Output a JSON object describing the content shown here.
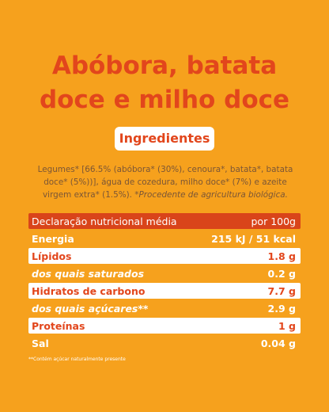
{
  "title": "Abóbora, batata doce e milho doce",
  "ingredients": {
    "heading": "Ingredientes",
    "text": "Legumes* [66.5% (abóbora* (30%), cenoura*, batata*, batata doce* (5%))], água de cozedura, milho doce* (7%) e azeite virgem extra* (1.5%).",
    "note": "*Procedente de agricultura biológica."
  },
  "table": {
    "header": [
      "Declaração nutricional média",
      "por 100g"
    ],
    "rows": [
      {
        "label": "Energia",
        "value": "215 kJ / 51 kcal",
        "italic": false
      },
      {
        "label": "Lípidos",
        "value": "1.8 g",
        "italic": false
      },
      {
        "label": "dos quais saturados",
        "value": "0.2 g",
        "italic": true
      },
      {
        "label": "Hidratos de carbono",
        "value": "7.7 g",
        "italic": false
      },
      {
        "label": "dos quais açúcares**",
        "value": "2.9 g",
        "italic": true
      },
      {
        "label": "Proteínas",
        "value": "1 g",
        "italic": false
      },
      {
        "label": "Sal",
        "value": "0.04 g",
        "italic": false
      }
    ]
  },
  "footnote": "**Contém açúcar naturalmente presente"
}
